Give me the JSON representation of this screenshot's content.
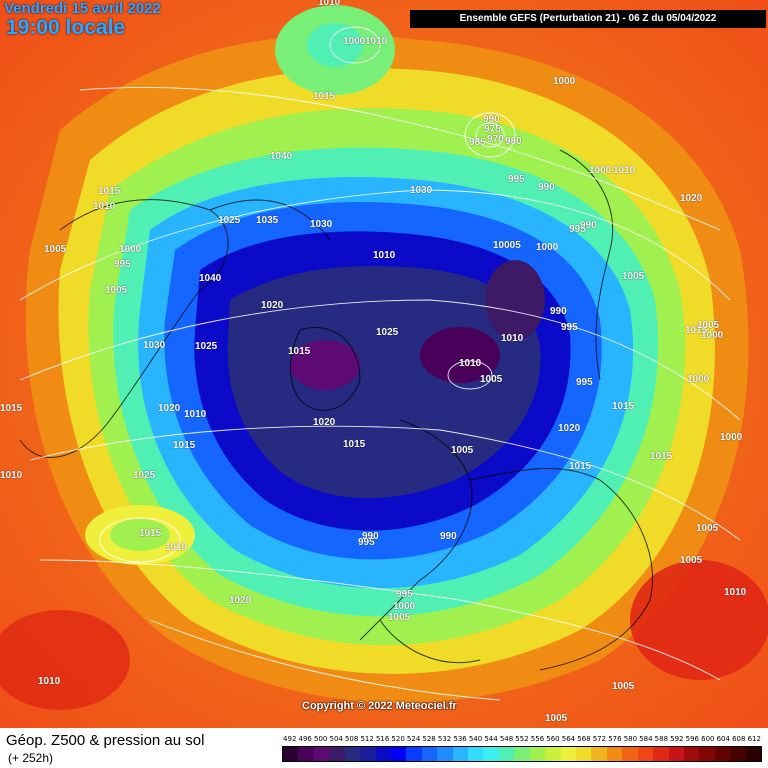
{
  "header": {
    "date": "Vendredi 15 avril 2022",
    "local_time": "19:00 locale",
    "run_info": "Ensemble GEFS  (Perturbation 21)  -  06 Z du 05/04/2022"
  },
  "copyright": "Copyright © 2022 Meteociel.fr",
  "footer": {
    "title": "Géop. Z500 & pression au sol",
    "forecast_hour": "(+ 252h)"
  },
  "isobar_labels": [
    "1010",
    "1000",
    "1010",
    "1015",
    "1000",
    "1040",
    "1015",
    "1010",
    "1025",
    "1035",
    "1030",
    "1030",
    "1005",
    "1000",
    "995",
    "1005",
    "1040",
    "1010",
    "1020",
    "1025",
    "1015",
    "1025",
    "1030",
    "1020",
    "1010",
    "1020",
    "1015",
    "1015",
    "1025",
    "1015",
    "1010",
    "1020",
    "1005",
    "990",
    "975",
    "970",
    "980",
    "985",
    "995",
    "990",
    "1000",
    "1010",
    "995",
    "990",
    "10005",
    "1000",
    "1010",
    "990",
    "995",
    "1010",
    "1005",
    "995",
    "1015",
    "1020",
    "1015",
    "1015",
    "1005",
    "1015",
    "1005",
    "1000",
    "1000",
    "1000",
    "1015",
    "1005",
    "1005",
    "1010",
    "995",
    "990",
    "995",
    "1000",
    "1005",
    "990",
    "1020",
    "1010",
    "1010",
    "1005",
    "1005"
  ],
  "legend": {
    "ticks": [
      "492",
      "496",
      "500",
      "504",
      "508",
      "512",
      "516",
      "520",
      "524",
      "528",
      "532",
      "536",
      "540",
      "544",
      "548",
      "552",
      "556",
      "560",
      "564",
      "568",
      "572",
      "576",
      "580",
      "584",
      "588",
      "592",
      "596",
      "600",
      "604",
      "608",
      "612"
    ],
    "colors": [
      "#2a0033",
      "#48005a",
      "#5d0a75",
      "#3c1a66",
      "#262a80",
      "#1b1e9c",
      "#0a0ac8",
      "#0000f5",
      "#0a3cff",
      "#1466ff",
      "#1e8cff",
      "#28b4ff",
      "#32dcff",
      "#3cf0f0",
      "#50f0b4",
      "#78f078",
      "#a0f050",
      "#c8f03c",
      "#f0f03c",
      "#f0dc28",
      "#f0b41e",
      "#f08c14",
      "#f06414",
      "#f04614",
      "#e02814",
      "#c81414",
      "#a00a0a",
      "#820505",
      "#640202",
      "#460000",
      "#2a0000"
    ]
  },
  "colors": {
    "date_text": "#2aa8ff",
    "run_bar_bg": "#000000",
    "label_text": "#ffffff"
  }
}
